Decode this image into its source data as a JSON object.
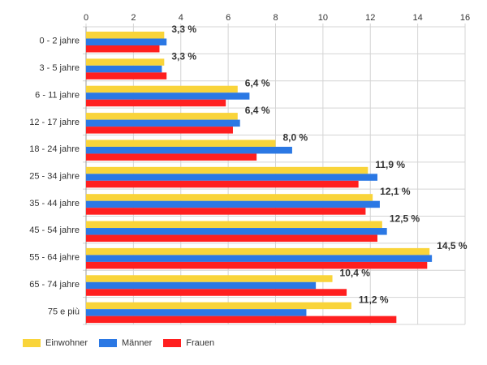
{
  "chart_data": {
    "type": "bar",
    "orientation": "horizontal",
    "categories": [
      "0 - 2 jahre",
      "3 - 5 jahre",
      "6 - 11 jahre",
      "12 - 17 jahre",
      "18 - 24 jahre",
      "25 - 34 jahre",
      "35 - 44 jahre",
      "45 - 54 jahre",
      "55 - 64 jahre",
      "65 - 74 jahre",
      "75 e più"
    ],
    "series": [
      {
        "name": "Einwohner",
        "color": "#f9d43a",
        "values": [
          3.3,
          3.3,
          6.4,
          6.4,
          8.0,
          11.9,
          12.1,
          12.5,
          14.5,
          10.4,
          11.2
        ]
      },
      {
        "name": "Männer",
        "color": "#2b78e4",
        "values": [
          3.4,
          3.2,
          6.9,
          6.5,
          8.7,
          12.3,
          12.4,
          12.7,
          14.6,
          9.7,
          9.3
        ]
      },
      {
        "name": "Frauen",
        "color": "#ff1f1f",
        "values": [
          3.1,
          3.4,
          5.9,
          6.2,
          7.2,
          11.5,
          11.8,
          12.3,
          14.4,
          11.0,
          13.1
        ]
      }
    ],
    "data_labels": [
      "3,3 %",
      "3,3 %",
      "6,4 %",
      "6,4 %",
      "8,0 %",
      "11,9 %",
      "12,1 %",
      "12,5 %",
      "14,5 %",
      "10,4 %",
      "11,2 %"
    ],
    "xlim": [
      0,
      16
    ],
    "xticks": [
      0,
      2,
      4,
      6,
      8,
      10,
      12,
      14,
      16
    ],
    "grid": true,
    "legend_position": "bottom-left"
  }
}
